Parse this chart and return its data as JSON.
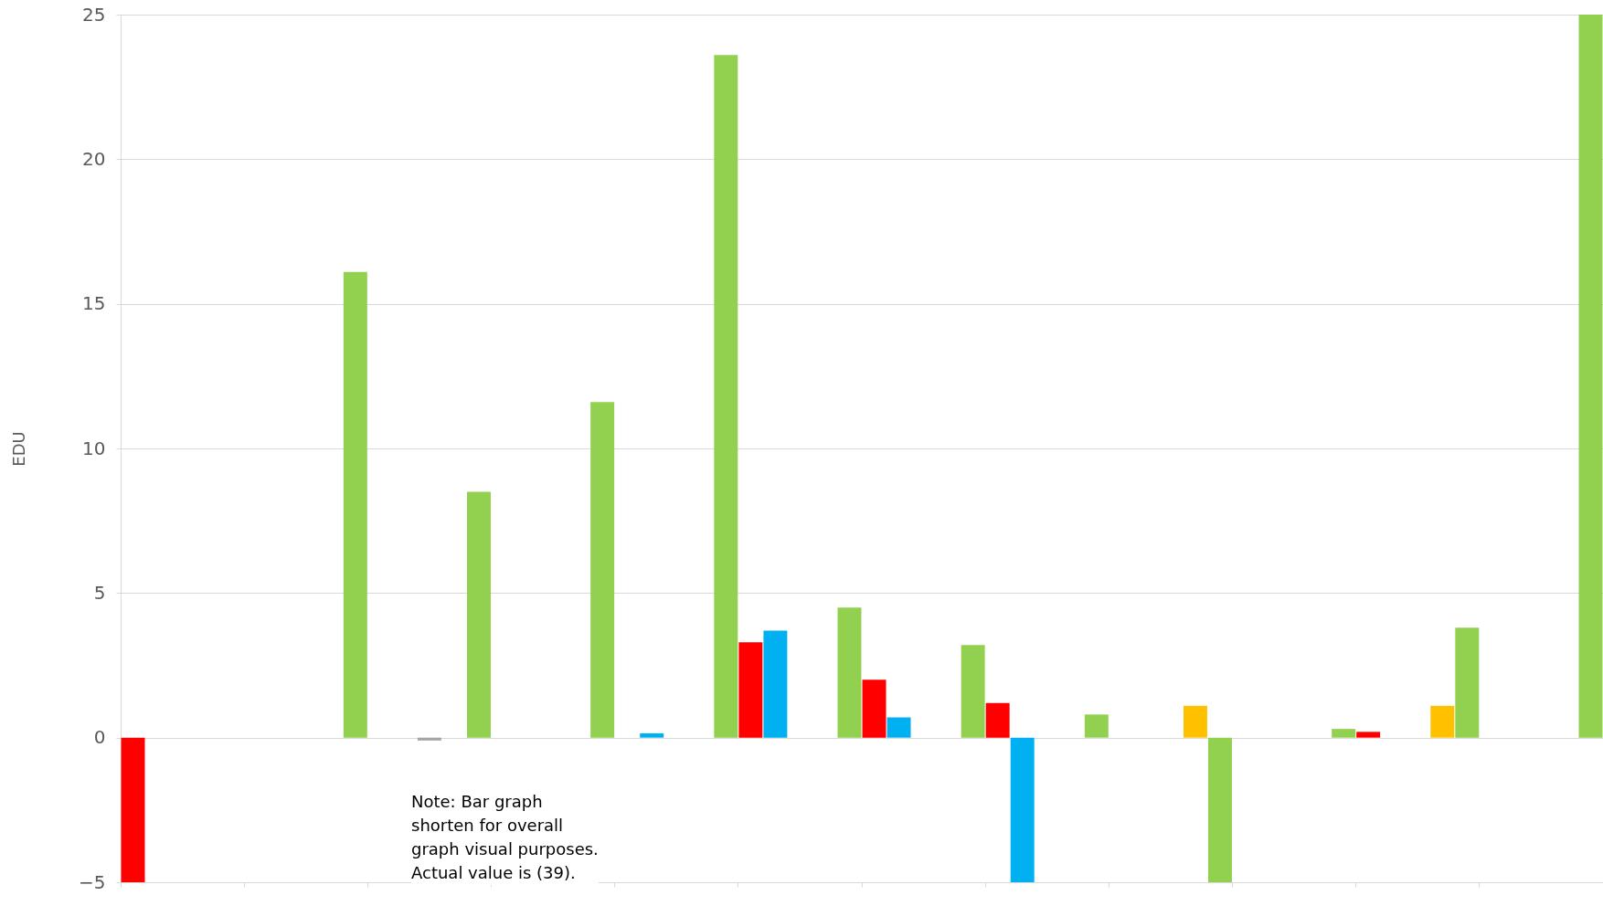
{
  "chart_data": {
    "type": "bar",
    "ylabel": "EDU",
    "categories": [
      null,
      null,
      null,
      null,
      null,
      null,
      null,
      null,
      null,
      null,
      null,
      null
    ],
    "series": [
      {
        "color": "#ff0000",
        "values": [
          -5,
          null,
          null,
          null,
          null,
          3.3,
          2.0,
          1.2,
          null,
          null,
          0.2,
          null
        ]
      },
      {
        "color": "#00b0f0",
        "values": [
          null,
          null,
          null,
          null,
          0.15,
          3.7,
          0.7,
          -5,
          null,
          null,
          null,
          null
        ]
      },
      {
        "color": "#a5a5a5",
        "values": [
          null,
          null,
          -0.1,
          null,
          null,
          null,
          null,
          null,
          null,
          null,
          null,
          null
        ]
      },
      {
        "color": "#ffc000",
        "values": [
          null,
          null,
          null,
          null,
          null,
          null,
          null,
          null,
          1.1,
          null,
          1.1,
          null
        ]
      },
      {
        "color": "#92d050",
        "values": [
          null,
          16.1,
          8.5,
          11.6,
          23.6,
          4.5,
          3.2,
          0.8,
          -5,
          0.3,
          3.8,
          25
        ]
      }
    ],
    "ylim": [
      -5,
      25
    ],
    "yticks": [
      -5,
      0,
      5,
      10,
      15,
      20,
      25
    ],
    "grid": "y",
    "annotations": [
      "Note: Bar graph\nshorten for overall\ngraph visual purposes.\nActual value is (39)."
    ]
  }
}
